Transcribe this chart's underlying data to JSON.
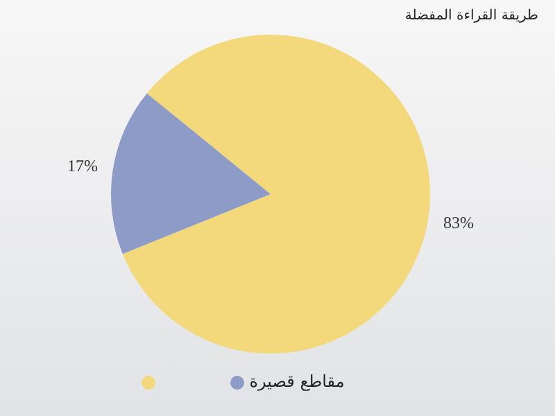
{
  "chart_data": {
    "type": "pie",
    "title": "طريقة القراءة المفضلة",
    "categories": [
      null,
      "مقاطع قصيرة"
    ],
    "values": [
      83,
      17
    ],
    "colors": [
      "#f3d97c",
      "#8d9cc6"
    ],
    "value_labels": [
      "83%",
      "17%"
    ],
    "legend": "bottom"
  }
}
